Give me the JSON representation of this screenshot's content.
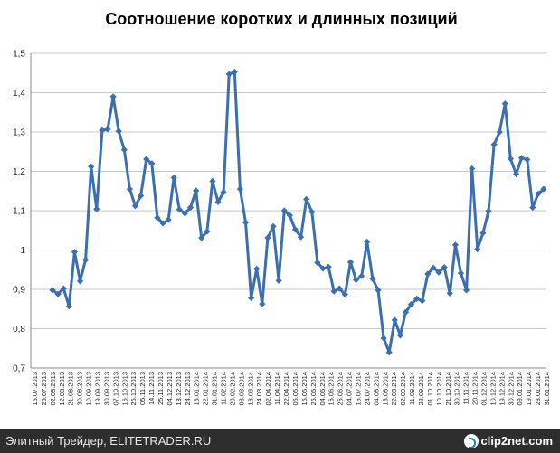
{
  "footer": {
    "left_text": "Элитный Трейдер, ELITETRADER.RU",
    "logo_text": "clip2net.com"
  },
  "colors": {
    "series": "#3b6fb0",
    "footer_bg": "#2e2e2e"
  },
  "chart_data": {
    "type": "line",
    "title": "Соотношение коротких и длинных позиций",
    "xlabel": "",
    "ylabel": "",
    "ylim": [
      0.7,
      1.5
    ],
    "yticks": [
      0.7,
      0.8,
      0.9,
      1.0,
      1.1,
      1.2,
      1.3,
      1.4,
      1.5
    ],
    "ytick_labels": [
      "0,7",
      "0,8",
      "0,9",
      "1",
      "1,1",
      "1,2",
      "1,3",
      "1,4",
      "1,5"
    ],
    "grid": true,
    "x_tick_labels": [
      "15.07.2013",
      "25.07.2013",
      "02.08.2013",
      "12.08.2013",
      "21.08.2013",
      "30.08.2013",
      "10.09.2013",
      "19.09.2013",
      "30.09.2013",
      "07.10.2013",
      "16.10.2013",
      "25.10.2013",
      "05.11.2013",
      "14.11.2013",
      "25.11.2013",
      "04.12.2013",
      "13.12.2013",
      "24.12.2013",
      "13.01.2014",
      "22.01.2014",
      "31.01.2014",
      "11.02.2014",
      "20.02.2014",
      "03.03.2014",
      "13.03.2014",
      "24.03.2014",
      "02.04.2014",
      "11.04.2014",
      "22.04.2014",
      "05.05.2014",
      "15.05.2014",
      "26.05.2014",
      "04.06.2014",
      "16.06.2014",
      "25.06.2014",
      "04.07.2014",
      "15.07.2014",
      "24.07.2014",
      "04.08.2014",
      "13.08.2014",
      "22.08.2014",
      "02.09.2014",
      "11.09.2014",
      "22.09.2014",
      "01.10.2014",
      "10.10.2014",
      "21.10.2014",
      "30.10.2014",
      "11.11.2014",
      "20.11.2014",
      "01.12.2014",
      "10.12.2014",
      "19.12.2014",
      "30.12.2014",
      "09.01.2014",
      "19.01.2014",
      "28.01.2014",
      "31.01.2014"
    ],
    "series": [
      {
        "values": [
          0.898,
          0.888,
          0.902,
          0.857,
          0.995,
          0.921,
          0.975,
          1.212,
          1.104,
          1.304,
          1.307,
          1.39,
          1.302,
          1.255,
          1.155,
          1.112,
          1.138,
          1.231,
          1.22,
          1.082,
          1.068,
          1.077,
          1.184,
          1.103,
          1.093,
          1.108,
          1.151,
          1.031,
          1.047,
          1.175,
          1.122,
          1.147,
          1.447,
          1.453,
          1.155,
          1.07,
          0.878,
          0.952,
          0.863,
          1.031,
          1.06,
          0.922,
          1.1,
          1.088,
          1.052,
          1.033,
          1.129,
          1.097,
          0.968,
          0.953,
          0.957,
          0.895,
          0.902,
          0.887,
          0.969,
          0.924,
          0.934,
          1.021,
          0.927,
          0.898,
          0.776,
          0.74,
          0.822,
          0.783,
          0.842,
          0.862,
          0.876,
          0.871,
          0.939,
          0.955,
          0.943,
          0.956,
          0.89,
          1.013,
          0.941,
          0.898,
          1.207,
          1.002,
          1.043,
          1.099,
          1.268,
          1.3,
          1.372,
          1.232,
          1.193,
          1.234,
          1.23,
          1.108,
          1.143,
          1.155
        ]
      }
    ]
  }
}
